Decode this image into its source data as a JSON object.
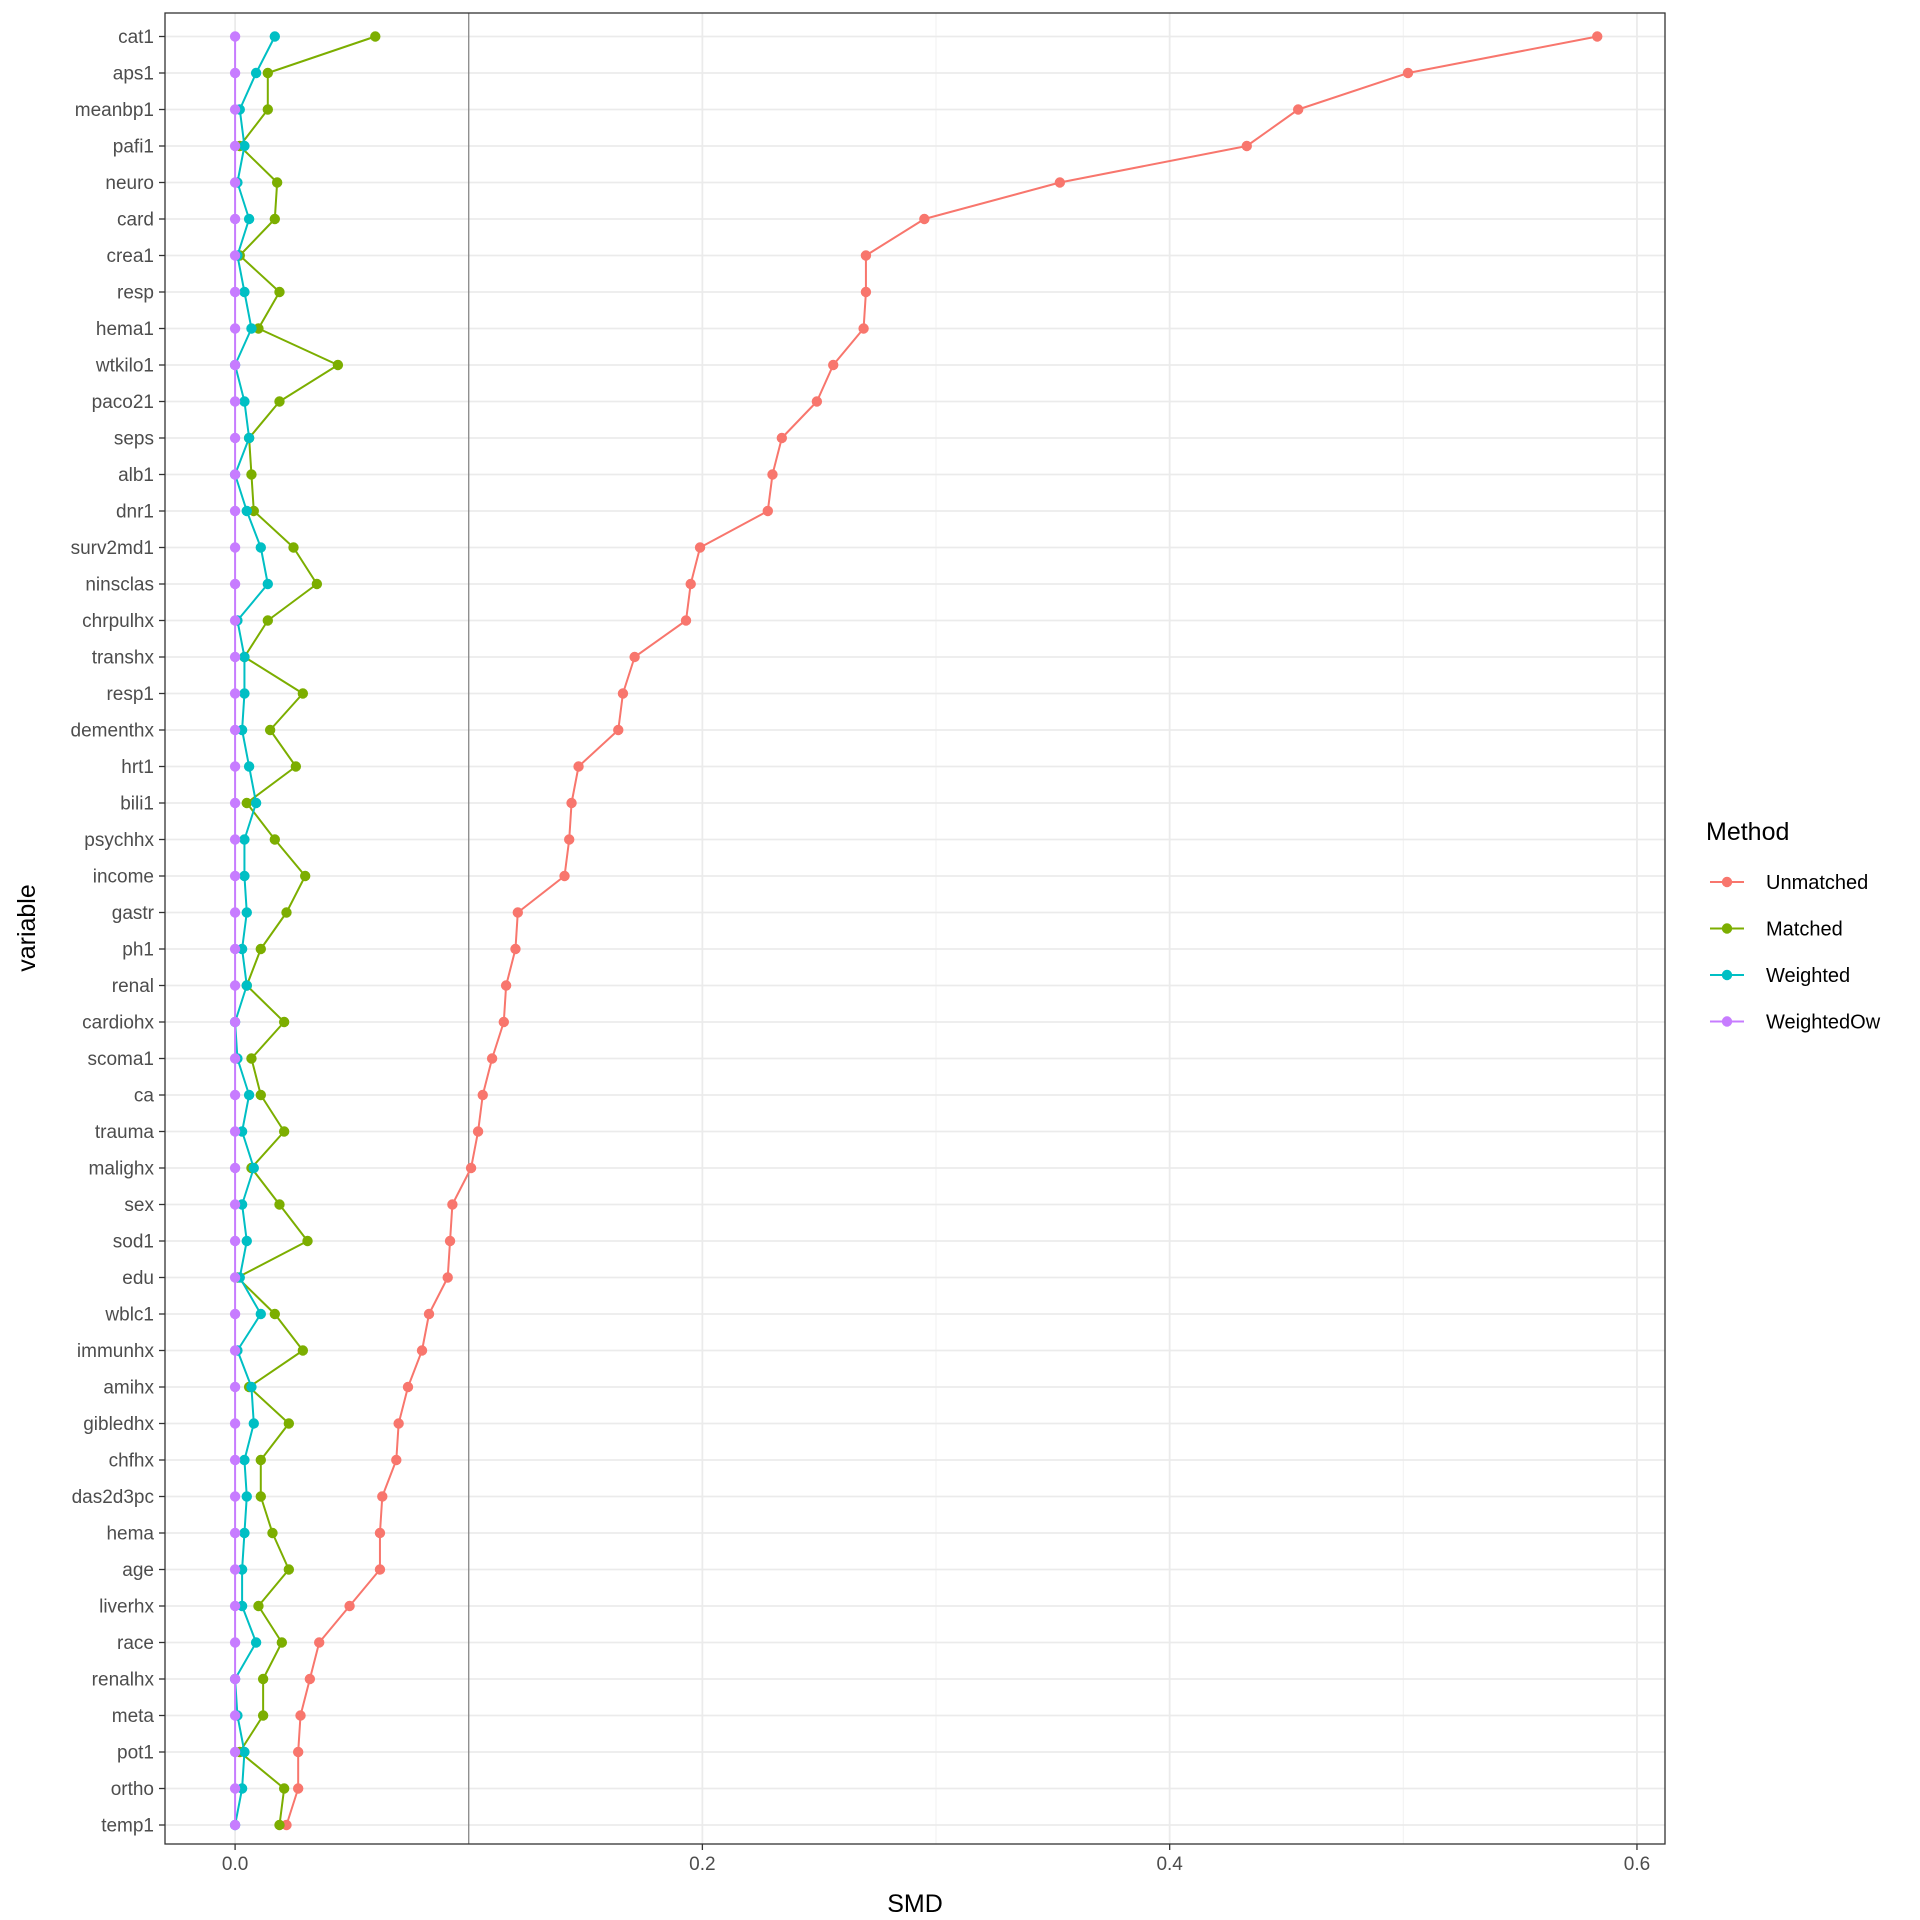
{
  "chart_data": {
    "type": "line",
    "xlabel": "SMD",
    "ylabel": "variable",
    "xlim": [
      -0.03,
      0.612
    ],
    "xticks": [
      0.0,
      0.2,
      0.4,
      0.6
    ],
    "xtick_labels": [
      "0.0",
      "0.2",
      "0.4",
      "0.6"
    ],
    "reference_line": 0.1,
    "grid": true,
    "legend": {
      "title": "Method",
      "position": "right"
    },
    "categories": [
      "cat1",
      "aps1",
      "meanbp1",
      "pafi1",
      "neuro",
      "card",
      "crea1",
      "resp",
      "hema1",
      "wtkilo1",
      "paco21",
      "seps",
      "alb1",
      "dnr1",
      "surv2md1",
      "ninsclas",
      "chrpulhx",
      "transhx",
      "resp1",
      "dementhx",
      "hrt1",
      "bili1",
      "psychhx",
      "income",
      "gastr",
      "ph1",
      "renal",
      "cardiohx",
      "scoma1",
      "ca",
      "trauma",
      "malighx",
      "sex",
      "sod1",
      "edu",
      "wblc1",
      "immunhx",
      "amihx",
      "gibledhx",
      "chfhx",
      "das2d3pc",
      "hema",
      "age",
      "liverhx",
      "race",
      "renalhx",
      "meta",
      "pot1",
      "ortho",
      "temp1"
    ],
    "series": [
      {
        "name": "Unmatched",
        "color": "#F8766D",
        "values": [
          0.583,
          0.502,
          0.455,
          0.433,
          0.353,
          0.295,
          0.27,
          0.27,
          0.269,
          0.256,
          0.249,
          0.234,
          0.23,
          0.228,
          0.199,
          0.195,
          0.193,
          0.171,
          0.166,
          0.164,
          0.147,
          0.144,
          0.143,
          0.141,
          0.121,
          0.12,
          0.116,
          0.115,
          0.11,
          0.106,
          0.104,
          0.101,
          0.093,
          0.092,
          0.091,
          0.083,
          0.08,
          0.074,
          0.07,
          0.069,
          0.063,
          0.062,
          0.062,
          0.049,
          0.036,
          0.032,
          0.028,
          0.027,
          0.027,
          0.022
        ]
      },
      {
        "name": "Matched",
        "color": "#7CAE00",
        "values": [
          0.06,
          0.014,
          0.014,
          0.002,
          0.018,
          0.017,
          0.002,
          0.019,
          0.01,
          0.044,
          0.019,
          0.006,
          0.007,
          0.008,
          0.025,
          0.035,
          0.014,
          0.004,
          0.029,
          0.015,
          0.026,
          0.005,
          0.017,
          0.03,
          0.022,
          0.011,
          0.005,
          0.021,
          0.007,
          0.011,
          0.021,
          0.007,
          0.019,
          0.031,
          0.001,
          0.017,
          0.029,
          0.006,
          0.023,
          0.011,
          0.011,
          0.016,
          0.023,
          0.01,
          0.02,
          0.012,
          0.012,
          0.002,
          0.021,
          0.019
        ]
      },
      {
        "name": "Weighted",
        "color": "#00BFC4",
        "values": [
          0.017,
          0.009,
          0.002,
          0.004,
          0.001,
          0.006,
          0.001,
          0.004,
          0.007,
          0.0,
          0.004,
          0.006,
          0.0,
          0.005,
          0.011,
          0.014,
          0.001,
          0.004,
          0.004,
          0.003,
          0.006,
          0.009,
          0.004,
          0.004,
          0.005,
          0.003,
          0.005,
          0.0,
          0.001,
          0.006,
          0.003,
          0.008,
          0.003,
          0.005,
          0.002,
          0.011,
          0.001,
          0.007,
          0.008,
          0.004,
          0.005,
          0.004,
          0.003,
          0.003,
          0.009,
          0.0,
          0.001,
          0.004,
          0.003,
          0.0
        ]
      },
      {
        "name": "WeightedOw",
        "color": "#C77CFF",
        "values": [
          0.0,
          0.0,
          0.0,
          0.0,
          0.0,
          0.0,
          0.0,
          0.0,
          0.0,
          0.0,
          0.0,
          0.0,
          0.0,
          0.0,
          0.0,
          0.0,
          0.0,
          0.0,
          0.0,
          0.0,
          0.0,
          0.0,
          0.0,
          0.0,
          0.0,
          0.0,
          0.0,
          0.0,
          0.0,
          0.0,
          0.0,
          0.0,
          0.0,
          0.0,
          0.0,
          0.0,
          0.0,
          0.0,
          0.0,
          0.0,
          0.0,
          0.0,
          0.0,
          0.0,
          0.0,
          0.0,
          0.0,
          0.0,
          0.0,
          0.0
        ]
      }
    ]
  }
}
